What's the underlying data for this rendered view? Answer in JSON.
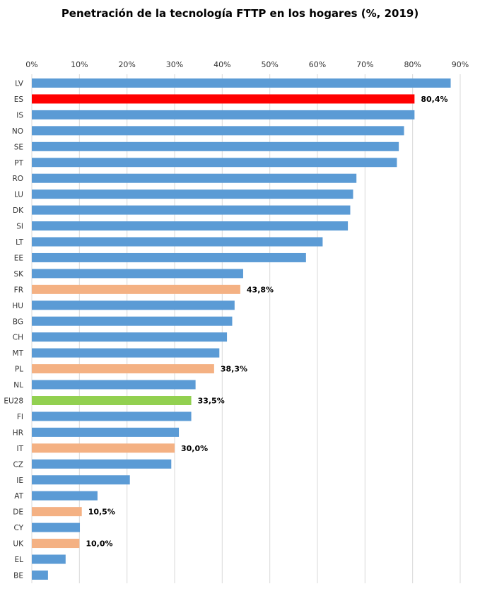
{
  "chart_data": {
    "type": "bar",
    "orientation": "horizontal",
    "title": "Penetración de la tecnología FTTP en los hogares (%, 2019)",
    "xlim": [
      0,
      90
    ],
    "x_ticks": [
      "0%",
      "10%",
      "20%",
      "30%",
      "40%",
      "50%",
      "60%",
      "70%",
      "80%",
      "90%"
    ],
    "grid": true,
    "colors": {
      "default": "#5B9BD5",
      "highlight": "#FF0000",
      "compare": "#F4B183",
      "average": "#92D050"
    },
    "categories": [
      "LV",
      "ES",
      "IS",
      "NO",
      "SE",
      "PT",
      "RO",
      "LU",
      "DK",
      "SI",
      "LT",
      "EE",
      "SK",
      "FR",
      "HU",
      "BG",
      "CH",
      "MT",
      "PL",
      "NL",
      "EU28",
      "FI",
      "HR",
      "IT",
      "CZ",
      "IE",
      "AT",
      "DE",
      "CY",
      "UK",
      "EL",
      "BE"
    ],
    "values": [
      88.0,
      80.4,
      80.4,
      78.2,
      77.1,
      76.7,
      68.2,
      67.5,
      66.9,
      66.4,
      61.1,
      57.6,
      44.4,
      43.8,
      42.6,
      42.1,
      41.0,
      39.4,
      38.3,
      34.4,
      33.5,
      33.5,
      30.9,
      30.0,
      29.3,
      20.6,
      13.8,
      10.5,
      10.1,
      10.0,
      7.1,
      3.4
    ],
    "bar_colors": [
      "default",
      "highlight",
      "default",
      "default",
      "default",
      "default",
      "default",
      "default",
      "default",
      "default",
      "default",
      "default",
      "default",
      "compare",
      "default",
      "default",
      "default",
      "default",
      "compare",
      "default",
      "average",
      "default",
      "default",
      "compare",
      "default",
      "default",
      "default",
      "compare",
      "default",
      "compare",
      "default",
      "default"
    ],
    "data_labels": [
      "",
      "80,4%",
      "",
      "",
      "",
      "",
      "",
      "",
      "",
      "",
      "",
      "",
      "",
      "43,8%",
      "",
      "",
      "",
      "",
      "38,3%",
      "",
      "33,5%",
      "",
      "",
      "30,0%",
      "",
      "",
      "",
      "10,5%",
      "",
      "10,0%",
      "",
      ""
    ]
  }
}
